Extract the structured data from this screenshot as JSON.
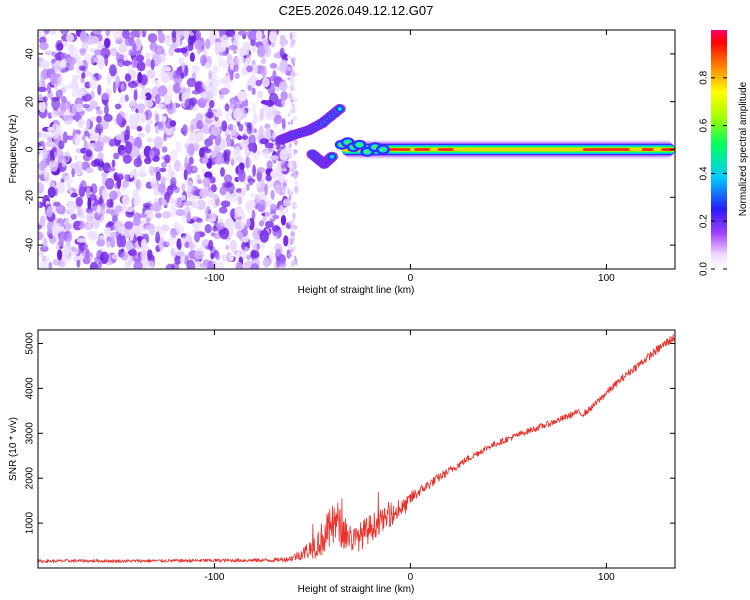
{
  "title": "C2E5.2026.049.12.12.G07",
  "chart_data": [
    {
      "type": "heatmap",
      "xlabel": "Height of straight line (km)",
      "ylabel": "Frequency (Hz)",
      "xlim": [
        -190,
        135
      ],
      "ylim": [
        -50,
        50
      ],
      "xticks": [
        -100,
        0,
        100
      ],
      "yticks": [
        -40,
        -20,
        0,
        20,
        40
      ],
      "colorbar": {
        "label": "Normalized spectral amplitude",
        "range": [
          0,
          1
        ],
        "ticks": [
          0.0,
          0.2,
          0.4,
          0.6,
          0.8
        ]
      },
      "noise_region_x": [
        -190,
        -62
      ],
      "features": [
        {
          "name": "branch-upper",
          "x": [
            -66,
            -60,
            -52,
            -45,
            -36
          ],
          "y": [
            4,
            6,
            8,
            11,
            17
          ]
        },
        {
          "name": "branch-lower",
          "x": [
            -50,
            -44,
            -40
          ],
          "y": [
            -2,
            -6,
            -3
          ]
        },
        {
          "name": "main-band",
          "x": [
            -35,
            135
          ],
          "y": [
            0,
            0
          ],
          "peak_amplitude": 1.0
        }
      ]
    },
    {
      "type": "line",
      "xlabel": "Height of straight line (km)",
      "ylabel": "SNR (10 * v/v)",
      "xlim": [
        -190,
        135
      ],
      "ylim": [
        0,
        5300
      ],
      "xticks": [
        -100,
        0,
        100
      ],
      "yticks": [
        1000,
        2000,
        3000,
        4000,
        5000
      ],
      "color": "#e8322b",
      "series": [
        {
          "name": "SNR",
          "x": [
            -190,
            -170,
            -150,
            -130,
            -110,
            -90,
            -70,
            -62,
            -55,
            -48,
            -44,
            -40,
            -37,
            -35,
            -32,
            -28,
            -24,
            -20,
            -15,
            -10,
            -6,
            -2,
            0,
            5,
            10,
            20,
            30,
            40,
            50,
            60,
            70,
            80,
            85,
            88,
            90,
            95,
            100,
            110,
            120,
            130,
            135
          ],
          "y": [
            150,
            160,
            155,
            160,
            165,
            170,
            175,
            200,
            320,
            520,
            700,
            900,
            1050,
            820,
            720,
            620,
            760,
            900,
            1050,
            1150,
            1280,
            1400,
            1550,
            1720,
            1880,
            2170,
            2450,
            2700,
            2880,
            3050,
            3200,
            3370,
            3470,
            3430,
            3480,
            3680,
            3900,
            4300,
            4650,
            5000,
            5150
          ],
          "noise_amplitude": [
            35,
            35,
            35,
            35,
            40,
            40,
            45,
            60,
            140,
            300,
            420,
            500,
            450,
            400,
            350,
            300,
            320,
            320,
            260,
            220,
            200,
            180,
            160,
            120,
            110,
            90,
            80,
            70,
            70,
            70,
            70,
            70,
            70,
            70,
            70,
            70,
            80,
            80,
            90,
            100,
            100
          ]
        }
      ]
    }
  ]
}
